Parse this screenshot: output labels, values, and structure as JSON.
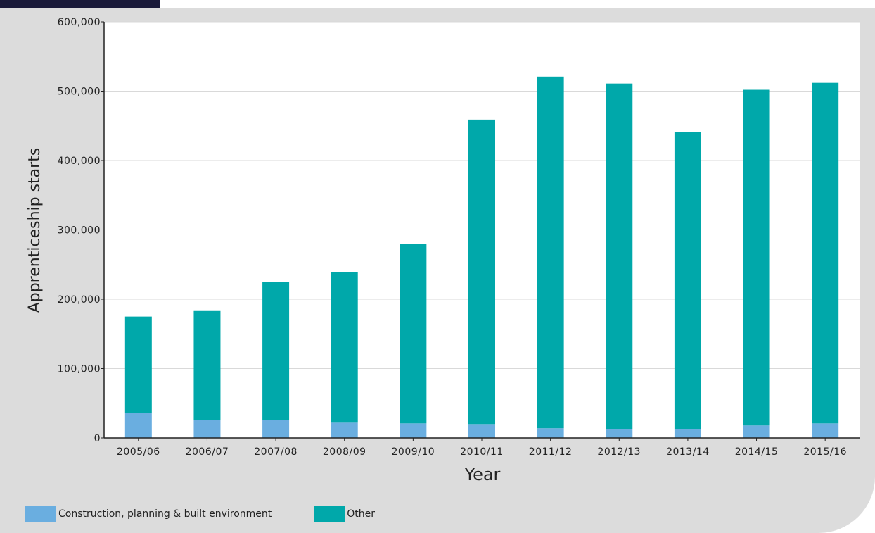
{
  "colors": {
    "panel_background": "#dcdcdc",
    "plot_background": "#ffffff",
    "header_tab": "#1a1a3a",
    "construction": "#6aaee0",
    "other": "#00a8aa"
  },
  "chart_data": {
    "type": "bar",
    "stacked": true,
    "categories": [
      "2005/06",
      "2006/07",
      "2007/08",
      "2008/09",
      "2009/10",
      "2010/11",
      "2011/12",
      "2012/13",
      "2013/14",
      "2014/15",
      "2015/16"
    ],
    "series": [
      {
        "name": "Construction, planning & built environment",
        "color": "#6aaee0",
        "values": [
          36000,
          26000,
          26000,
          22000,
          21000,
          20000,
          14000,
          13000,
          13000,
          18000,
          21000
        ]
      },
      {
        "name": "Other",
        "color": "#00a8aa",
        "values": [
          139000,
          158000,
          199000,
          217000,
          259000,
          439000,
          507000,
          498000,
          428000,
          484000,
          491000
        ]
      }
    ],
    "title": "",
    "xlabel": "Year",
    "ylabel": "Apprenticeship starts",
    "ylim": [
      0,
      600000
    ],
    "yticks": [
      {
        "value": 0,
        "label": "0"
      },
      {
        "value": 100000,
        "label": "100,000"
      },
      {
        "value": 200000,
        "label": "200,000"
      },
      {
        "value": 300000,
        "label": "300,000"
      },
      {
        "value": 400000,
        "label": "400,000"
      },
      {
        "value": 500000,
        "label": "500,000"
      },
      {
        "value": 600000,
        "label": "600,000"
      }
    ],
    "grid": true,
    "legend_position": "bottom-left"
  }
}
